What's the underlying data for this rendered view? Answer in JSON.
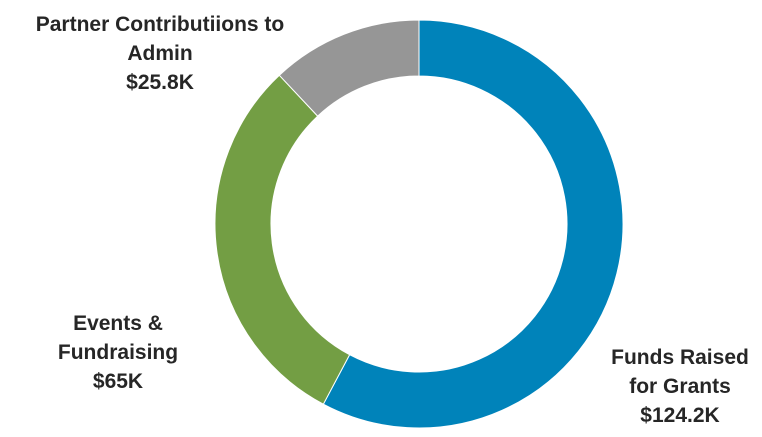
{
  "chart_data": {
    "type": "pie",
    "variant": "donut",
    "title": "",
    "slices": [
      {
        "name": "Funds Raised for Grants",
        "label_lines": [
          "Funds Raised",
          "for Grants"
        ],
        "value": 124.2,
        "value_label": "$124.2K",
        "color": "#0083BA"
      },
      {
        "name": "Events & Fundraising",
        "label_lines": [
          "Events &",
          "Fundraising"
        ],
        "value": 65,
        "value_label": "$65K",
        "color": "#739E44"
      },
      {
        "name": "Partner Contributiions to Admin",
        "label_lines": [
          "Partner Contributiions to",
          "Admin"
        ],
        "value": 25.8,
        "value_label": "$25.8K",
        "color": "#969696"
      }
    ],
    "start_angle_deg": 0,
    "direction": "clockwise",
    "legend": "none"
  }
}
